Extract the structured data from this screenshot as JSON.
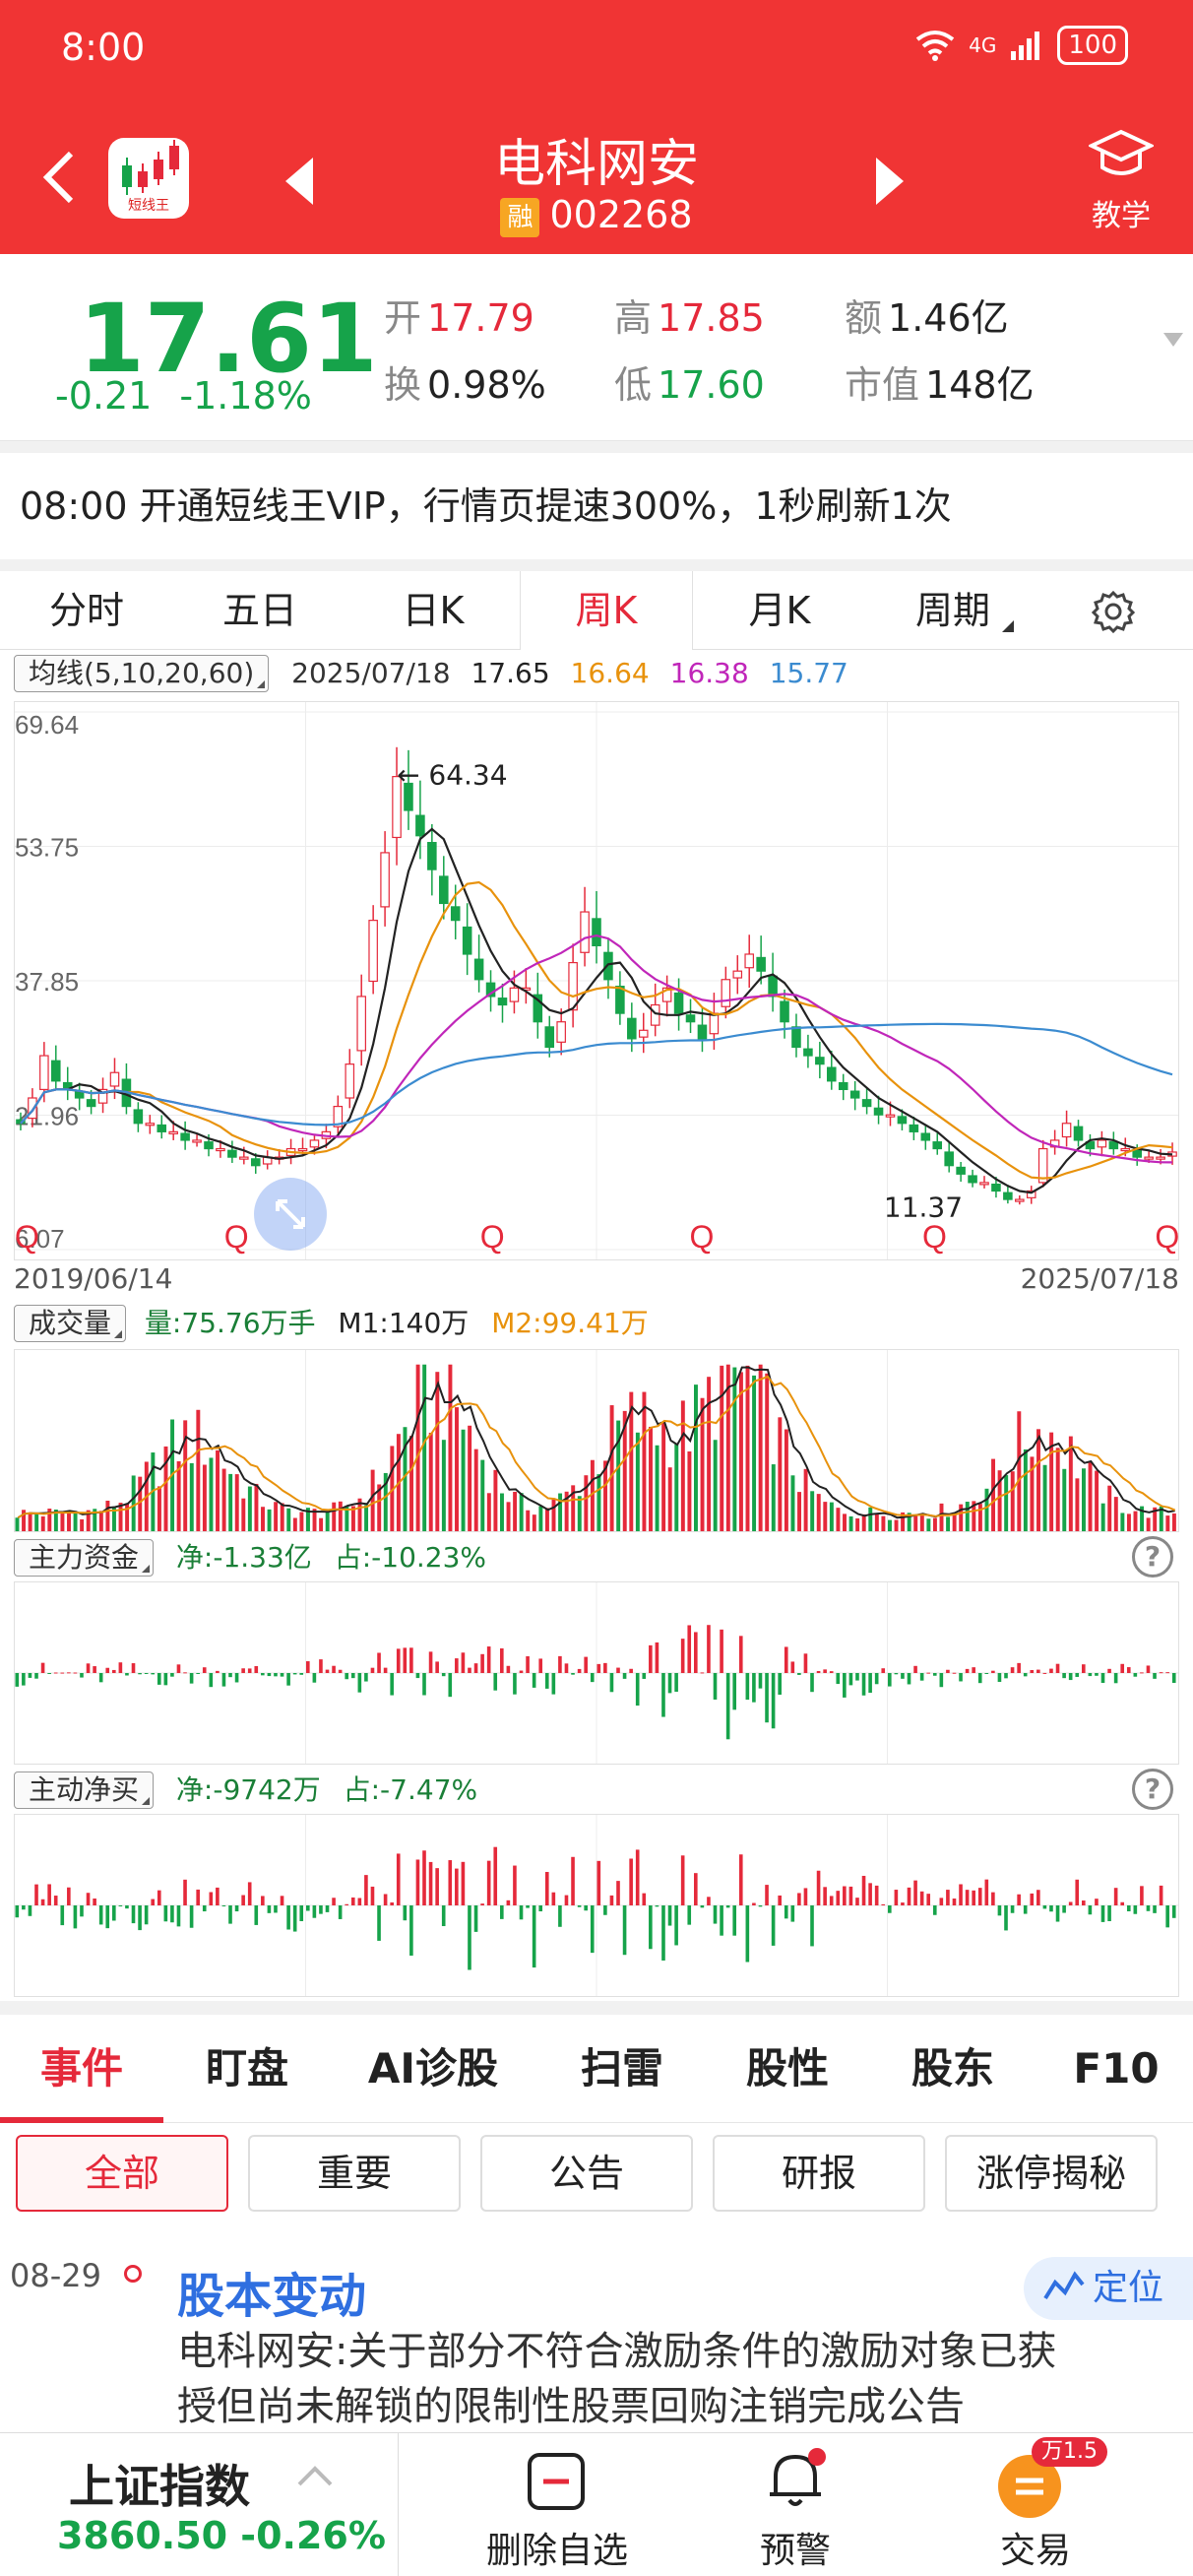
{
  "status_bar": {
    "time": "8:00",
    "network": "4G",
    "battery": "100"
  },
  "header": {
    "stock_name": "电科网安",
    "margin_badge": "融",
    "stock_code": "002268",
    "app_logo_label": "短线王",
    "teach_label": "教学"
  },
  "quote": {
    "price": "17.61",
    "change": "-0.21",
    "change_pct": "-1.18%",
    "open_label": "开",
    "open": "17.79",
    "high_label": "高",
    "high": "17.85",
    "amount_label": "额",
    "amount": "1.46亿",
    "turnover_label": "换",
    "turnover": "0.98%",
    "low_label": "低",
    "low": "17.60",
    "mktcap_label": "市值",
    "mktcap": "148亿"
  },
  "promo_text": "08:00 开通短线王VIP，行情页提速300%，1秒刷新1次",
  "period_tabs": [
    "分时",
    "五日",
    "日K",
    "周K",
    "月K",
    "周期"
  ],
  "active_period": "周K",
  "ma_legend": {
    "label": "均线(5,10,20,60)",
    "date": "2025/07/18",
    "ma5": "17.65",
    "ma10": "16.64",
    "ma20": "16.38",
    "ma60": "15.77"
  },
  "colors": {
    "up": "#e5293a",
    "down": "#16a34a",
    "ma5": "#222222",
    "ma10": "#e8920c",
    "ma20": "#c026b9",
    "ma60": "#3b8bd0",
    "brand": "#f03434"
  },
  "kline": {
    "y_ticks": [
      "69.64",
      "53.75",
      "37.85",
      "21.96",
      "6.07"
    ],
    "peak_label": "← 64.34",
    "low_label": "11.37",
    "marker": "Q",
    "start_date": "2019/06/14",
    "end_date": "2025/07/18"
  },
  "volume_panel": {
    "label": "成交量",
    "vol_text": "量:75.76万手",
    "m1_text": "M1:140万",
    "m2_text": "M2:99.41万"
  },
  "main_fund_panel": {
    "label": "主力资金",
    "net_text": "净:-1.33亿",
    "pct_text": "占:-10.23%"
  },
  "active_buy_panel": {
    "label": "主动净买",
    "net_text": "净:-9742万",
    "pct_text": "占:-7.47%"
  },
  "help_glyph": "?",
  "chart_data": {
    "type": "candlestick",
    "period": "weekly",
    "x_range": [
      "2019/06/14",
      "2025/07/18"
    ],
    "ylim": [
      6.07,
      69.64
    ],
    "y_ticks": [
      69.64,
      53.75,
      37.85,
      21.96,
      6.07
    ],
    "annotations": [
      {
        "label": "64.34",
        "kind": "high"
      },
      {
        "label": "11.37",
        "kind": "low"
      }
    ],
    "series": [
      {
        "name": "MA5",
        "last": 17.65
      },
      {
        "name": "MA10",
        "last": 16.64
      },
      {
        "name": "MA20",
        "last": 16.38
      },
      {
        "name": "MA60",
        "last": 15.77
      }
    ],
    "close_approx": [
      21,
      24,
      29,
      26,
      25,
      24,
      23,
      25,
      27,
      23,
      21,
      21,
      20,
      20,
      19,
      19,
      18,
      18,
      17,
      17,
      16,
      17,
      17,
      18,
      18,
      19,
      20,
      23,
      28,
      36,
      45,
      53,
      62,
      58,
      55,
      51,
      47,
      45,
      41,
      38,
      36,
      35,
      37,
      37,
      33,
      30,
      33,
      40,
      46,
      42,
      38,
      34,
      31,
      32,
      35,
      37,
      34,
      33,
      31,
      34,
      38,
      39,
      41,
      39,
      36,
      33,
      30,
      29,
      28,
      26,
      25,
      24,
      23,
      22,
      22,
      21,
      20,
      19,
      18,
      16,
      15,
      14,
      14,
      13,
      12,
      12,
      13,
      18,
      19,
      21,
      19,
      18,
      19,
      18,
      18,
      17,
      17,
      17,
      17.6
    ],
    "summary": {
      "close": 17.61,
      "high_peak": 64.34,
      "low_trough": 11.37
    }
  },
  "bottom_tabs": [
    "事件",
    "盯盘",
    "AI诊股",
    "扫雷",
    "股性",
    "股东",
    "F10"
  ],
  "active_bottom_tab": "事件",
  "filters": [
    "全部",
    "重要",
    "公告",
    "研报",
    "涨停揭秘"
  ],
  "active_filter": "全部",
  "event": {
    "date": "08-29",
    "title": "股本变动",
    "body": "电科网安:关于部分不符合激励条件的激励对象已获授但尚未解锁的限制性股票回购注销完成公告",
    "locate_label": "定位"
  },
  "bottom_bar": {
    "index_name": "上证指数",
    "index_value": "3860.50 -0.26%",
    "delete_label": "删除自选",
    "alert_label": "预警",
    "trade_label": "交易",
    "trade_badge": "万1.5"
  }
}
